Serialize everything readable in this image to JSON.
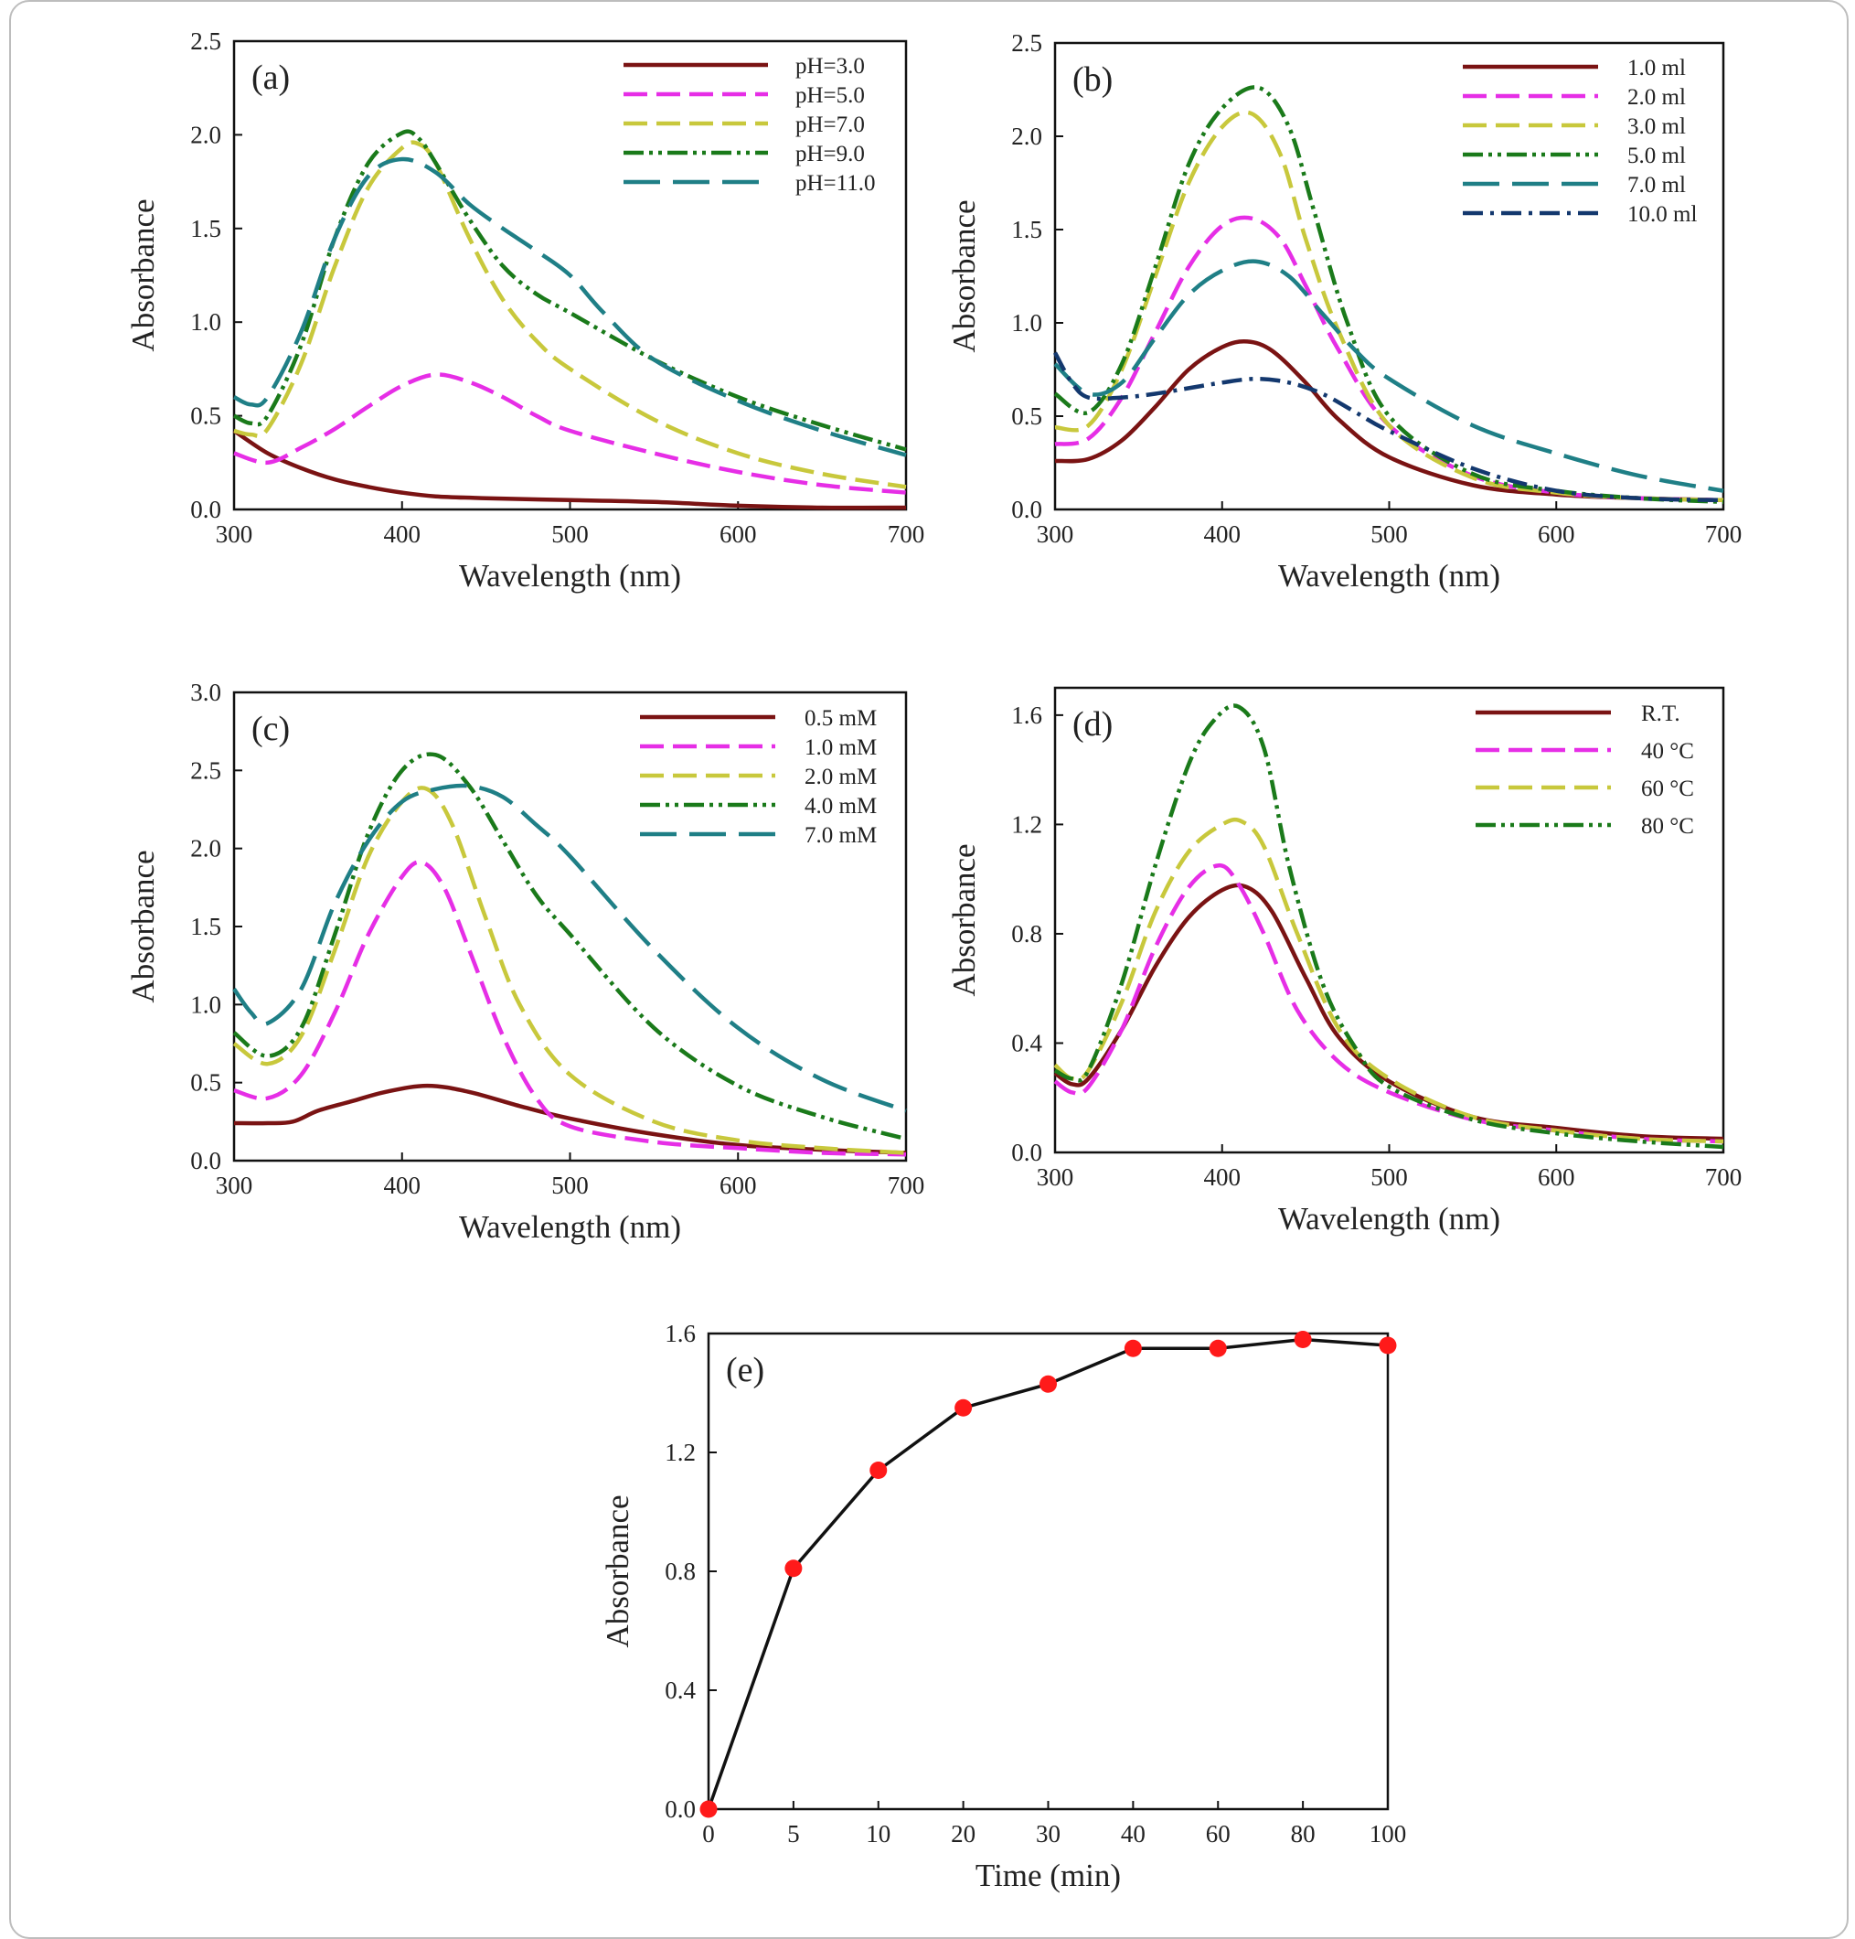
{
  "colors": {
    "maroon": "#7a1313",
    "magenta": "#e62ee6",
    "olive": "#c8c83c",
    "green": "#1a7a1a",
    "teal": "#1f7f86",
    "navy": "#13386e",
    "red_marker": "#ff1a1a",
    "black": "#111111"
  },
  "chart_data": [
    {
      "panel_label": "(a)",
      "type": "line",
      "xlabel": "Wavelength (nm)",
      "ylabel": "Absorbance",
      "xlim": [
        300,
        700
      ],
      "ylim": [
        0,
        2.5
      ],
      "xticks": [
        "300",
        "400",
        "500",
        "600",
        "700"
      ],
      "yticks": [
        "0.0",
        "0.5",
        "1.0",
        "1.5",
        "2.0",
        "2.5"
      ],
      "legend_position": "top-right",
      "series": [
        {
          "name": "pH=3.0",
          "color": "maroon",
          "dash": "solid",
          "x": [
            300,
            320,
            340,
            360,
            380,
            400,
            420,
            450,
            500,
            550,
            600,
            650,
            700
          ],
          "y": [
            0.42,
            0.3,
            0.22,
            0.16,
            0.12,
            0.09,
            0.07,
            0.06,
            0.05,
            0.04,
            0.02,
            0.01,
            0.01
          ]
        },
        {
          "name": "pH=5.0",
          "color": "magenta",
          "dash": "dash",
          "x": [
            300,
            320,
            340,
            360,
            380,
            400,
            420,
            440,
            460,
            480,
            500,
            550,
            600,
            650,
            700
          ],
          "y": [
            0.3,
            0.25,
            0.33,
            0.43,
            0.55,
            0.66,
            0.72,
            0.68,
            0.6,
            0.5,
            0.42,
            0.3,
            0.2,
            0.13,
            0.09
          ]
        },
        {
          "name": "pH=7.0",
          "color": "olive",
          "dash": "dash",
          "x": [
            300,
            310,
            320,
            340,
            360,
            380,
            400,
            410,
            420,
            440,
            460,
            480,
            500,
            550,
            600,
            650,
            700
          ],
          "y": [
            0.42,
            0.4,
            0.43,
            0.78,
            1.3,
            1.72,
            1.93,
            1.95,
            1.85,
            1.45,
            1.12,
            0.9,
            0.75,
            0.48,
            0.3,
            0.19,
            0.12
          ]
        },
        {
          "name": "pH=9.0",
          "color": "green",
          "dash": "dashdotdot",
          "x": [
            300,
            310,
            320,
            340,
            360,
            380,
            400,
            410,
            420,
            440,
            460,
            480,
            500,
            550,
            600,
            650,
            700
          ],
          "y": [
            0.5,
            0.46,
            0.5,
            0.88,
            1.45,
            1.85,
            2.01,
            1.98,
            1.85,
            1.55,
            1.3,
            1.15,
            1.05,
            0.8,
            0.6,
            0.45,
            0.32
          ]
        },
        {
          "name": "pH=11.0",
          "color": "teal",
          "dash": "longdash",
          "x": [
            300,
            310,
            320,
            340,
            360,
            380,
            400,
            420,
            440,
            460,
            480,
            500,
            520,
            550,
            600,
            650,
            700
          ],
          "y": [
            0.6,
            0.56,
            0.6,
            0.95,
            1.45,
            1.78,
            1.87,
            1.8,
            1.63,
            1.5,
            1.38,
            1.25,
            1.05,
            0.8,
            0.58,
            0.42,
            0.29
          ]
        }
      ]
    },
    {
      "panel_label": "(b)",
      "type": "line",
      "xlabel": "Wavelength (nm)",
      "ylabel": "Absorbance",
      "xlim": [
        300,
        700
      ],
      "ylim": [
        0,
        2.5
      ],
      "xticks": [
        "300",
        "400",
        "500",
        "600",
        "700"
      ],
      "yticks": [
        "0.0",
        "0.5",
        "1.0",
        "1.5",
        "2.0",
        "2.5"
      ],
      "legend_position": "top-right",
      "series": [
        {
          "name": "1.0 ml",
          "color": "maroon",
          "dash": "solid",
          "x": [
            300,
            320,
            340,
            360,
            380,
            400,
            415,
            430,
            450,
            470,
            500,
            550,
            600,
            650,
            700
          ],
          "y": [
            0.26,
            0.27,
            0.37,
            0.55,
            0.75,
            0.87,
            0.9,
            0.85,
            0.68,
            0.48,
            0.28,
            0.13,
            0.08,
            0.06,
            0.05
          ]
        },
        {
          "name": "2.0 ml",
          "color": "magenta",
          "dash": "dash",
          "x": [
            300,
            320,
            340,
            360,
            380,
            400,
            418,
            435,
            450,
            470,
            500,
            550,
            600,
            650,
            700
          ],
          "y": [
            0.35,
            0.38,
            0.6,
            0.95,
            1.3,
            1.52,
            1.56,
            1.45,
            1.2,
            0.85,
            0.45,
            0.18,
            0.09,
            0.06,
            0.05
          ]
        },
        {
          "name": "3.0 ml",
          "color": "olive",
          "dash": "dash",
          "x": [
            300,
            320,
            340,
            360,
            380,
            400,
            418,
            435,
            450,
            470,
            500,
            550,
            600,
            650,
            700
          ],
          "y": [
            0.44,
            0.45,
            0.75,
            1.25,
            1.75,
            2.05,
            2.12,
            1.9,
            1.45,
            0.95,
            0.45,
            0.17,
            0.09,
            0.06,
            0.05
          ]
        },
        {
          "name": "5.0 ml",
          "color": "green",
          "dash": "dashdotdot",
          "x": [
            300,
            320,
            340,
            360,
            380,
            400,
            422,
            440,
            455,
            475,
            500,
            550,
            600,
            650,
            700
          ],
          "y": [
            0.62,
            0.52,
            0.78,
            1.3,
            1.85,
            2.15,
            2.26,
            2.05,
            1.6,
            1.0,
            0.5,
            0.19,
            0.1,
            0.06,
            0.04
          ]
        },
        {
          "name": "7.0 ml",
          "color": "teal",
          "dash": "longdash",
          "x": [
            300,
            320,
            340,
            360,
            380,
            400,
            420,
            440,
            460,
            480,
            500,
            550,
            600,
            650,
            700
          ],
          "y": [
            0.78,
            0.62,
            0.68,
            0.92,
            1.15,
            1.28,
            1.33,
            1.25,
            1.05,
            0.85,
            0.7,
            0.45,
            0.3,
            0.18,
            0.1
          ]
        },
        {
          "name": "10.0 ml",
          "color": "navy",
          "dash": "dashdot",
          "x": [
            300,
            310,
            320,
            340,
            360,
            380,
            400,
            420,
            440,
            460,
            480,
            500,
            550,
            600,
            650,
            700
          ],
          "y": [
            0.84,
            0.68,
            0.6,
            0.6,
            0.62,
            0.65,
            0.68,
            0.7,
            0.68,
            0.62,
            0.52,
            0.42,
            0.22,
            0.1,
            0.06,
            0.05
          ]
        }
      ]
    },
    {
      "panel_label": "(c)",
      "type": "line",
      "xlabel": "Wavelength (nm)",
      "ylabel": "Absorbance",
      "xlim": [
        300,
        700
      ],
      "ylim": [
        0,
        3.0
      ],
      "xticks": [
        "300",
        "400",
        "500",
        "600",
        "700"
      ],
      "yticks": [
        "0.0",
        "0.5",
        "1.0",
        "1.5",
        "2.0",
        "2.5",
        "3.0"
      ],
      "legend_position": "top-right",
      "series": [
        {
          "name": "0.5 mM",
          "color": "maroon",
          "dash": "solid",
          "x": [
            300,
            320,
            335,
            350,
            370,
            390,
            415,
            440,
            470,
            500,
            550,
            600,
            650,
            700
          ],
          "y": [
            0.24,
            0.24,
            0.25,
            0.32,
            0.38,
            0.44,
            0.48,
            0.44,
            0.35,
            0.27,
            0.17,
            0.1,
            0.07,
            0.05
          ]
        },
        {
          "name": "1.0 mM",
          "color": "magenta",
          "dash": "dash",
          "x": [
            300,
            320,
            340,
            360,
            380,
            400,
            412,
            425,
            440,
            460,
            480,
            500,
            550,
            600,
            650,
            700
          ],
          "y": [
            0.45,
            0.4,
            0.55,
            0.95,
            1.45,
            1.82,
            1.91,
            1.75,
            1.35,
            0.8,
            0.4,
            0.22,
            0.12,
            0.08,
            0.05,
            0.04
          ]
        },
        {
          "name": "2.0 mM",
          "color": "olive",
          "dash": "dash",
          "x": [
            300,
            320,
            340,
            360,
            380,
            400,
            415,
            430,
            450,
            470,
            500,
            550,
            600,
            650,
            700
          ],
          "y": [
            0.75,
            0.62,
            0.8,
            1.35,
            1.95,
            2.3,
            2.38,
            2.15,
            1.55,
            1.0,
            0.55,
            0.25,
            0.13,
            0.08,
            0.05
          ]
        },
        {
          "name": "4.0 mM",
          "color": "green",
          "dash": "dashdotdot",
          "x": [
            300,
            320,
            340,
            360,
            380,
            400,
            420,
            440,
            460,
            480,
            500,
            550,
            600,
            650,
            700
          ],
          "y": [
            0.82,
            0.67,
            0.85,
            1.45,
            2.1,
            2.5,
            2.6,
            2.4,
            2.05,
            1.7,
            1.45,
            0.85,
            0.48,
            0.28,
            0.14
          ]
        },
        {
          "name": "7.0 mM",
          "color": "teal",
          "dash": "longdash",
          "x": [
            300,
            310,
            320,
            340,
            360,
            380,
            400,
            420,
            440,
            460,
            480,
            500,
            550,
            600,
            650,
            700
          ],
          "y": [
            1.1,
            0.95,
            0.88,
            1.1,
            1.65,
            2.05,
            2.3,
            2.38,
            2.4,
            2.33,
            2.15,
            1.95,
            1.35,
            0.85,
            0.52,
            0.32
          ]
        }
      ]
    },
    {
      "panel_label": "(d)",
      "type": "line",
      "xlabel": "Wavelength (nm)",
      "ylabel": "Absorbance",
      "xlim": [
        300,
        700
      ],
      "ylim": [
        0,
        1.7
      ],
      "xticks": [
        "300",
        "400",
        "500",
        "600",
        "700"
      ],
      "yticks": [
        "0.0",
        "0.4",
        "0.8",
        "1.2",
        "1.6"
      ],
      "legend_position": "top-right",
      "series": [
        {
          "name": "R.T.",
          "color": "maroon",
          "dash": "solid",
          "x": [
            300,
            310,
            320,
            340,
            360,
            380,
            400,
            415,
            430,
            450,
            470,
            500,
            550,
            600,
            650,
            700
          ],
          "y": [
            0.29,
            0.25,
            0.27,
            0.45,
            0.68,
            0.86,
            0.96,
            0.97,
            0.88,
            0.64,
            0.42,
            0.26,
            0.13,
            0.09,
            0.06,
            0.05
          ]
        },
        {
          "name": "40 °C",
          "color": "magenta",
          "dash": "dash",
          "x": [
            300,
            310,
            320,
            340,
            360,
            380,
            398,
            410,
            425,
            445,
            470,
            500,
            550,
            600,
            650,
            700
          ],
          "y": [
            0.26,
            0.22,
            0.24,
            0.45,
            0.75,
            0.97,
            1.05,
            0.98,
            0.8,
            0.52,
            0.33,
            0.22,
            0.12,
            0.08,
            0.05,
            0.04
          ]
        },
        {
          "name": "60 °C",
          "color": "olive",
          "dash": "dash",
          "x": [
            300,
            310,
            320,
            340,
            360,
            380,
            400,
            412,
            425,
            445,
            470,
            500,
            550,
            600,
            650,
            700
          ],
          "y": [
            0.32,
            0.27,
            0.3,
            0.55,
            0.88,
            1.1,
            1.2,
            1.21,
            1.12,
            0.8,
            0.45,
            0.27,
            0.13,
            0.08,
            0.05,
            0.04
          ]
        },
        {
          "name": "80 °C",
          "color": "green",
          "dash": "dashdotdot",
          "x": [
            300,
            310,
            320,
            340,
            360,
            380,
            395,
            410,
            425,
            440,
            460,
            480,
            500,
            550,
            600,
            650,
            700
          ],
          "y": [
            0.3,
            0.27,
            0.3,
            0.62,
            1.05,
            1.42,
            1.58,
            1.63,
            1.48,
            1.05,
            0.62,
            0.38,
            0.24,
            0.12,
            0.07,
            0.04,
            0.02
          ]
        }
      ]
    },
    {
      "panel_label": "(e)",
      "type": "line",
      "xlabel": "Time (min)",
      "ylabel": "Absorbance",
      "categories": [
        "0",
        "5",
        "10",
        "20",
        "30",
        "40",
        "60",
        "80",
        "100"
      ],
      "ylim": [
        0,
        1.6
      ],
      "yticks": [
        "0.0",
        "0.4",
        "0.8",
        "1.2",
        "1.6"
      ],
      "series": [
        {
          "color": "black",
          "marker_color": "red_marker",
          "values": [
            0.0,
            0.81,
            1.14,
            1.35,
            1.43,
            1.55,
            1.55,
            1.58,
            1.56
          ]
        }
      ]
    }
  ]
}
